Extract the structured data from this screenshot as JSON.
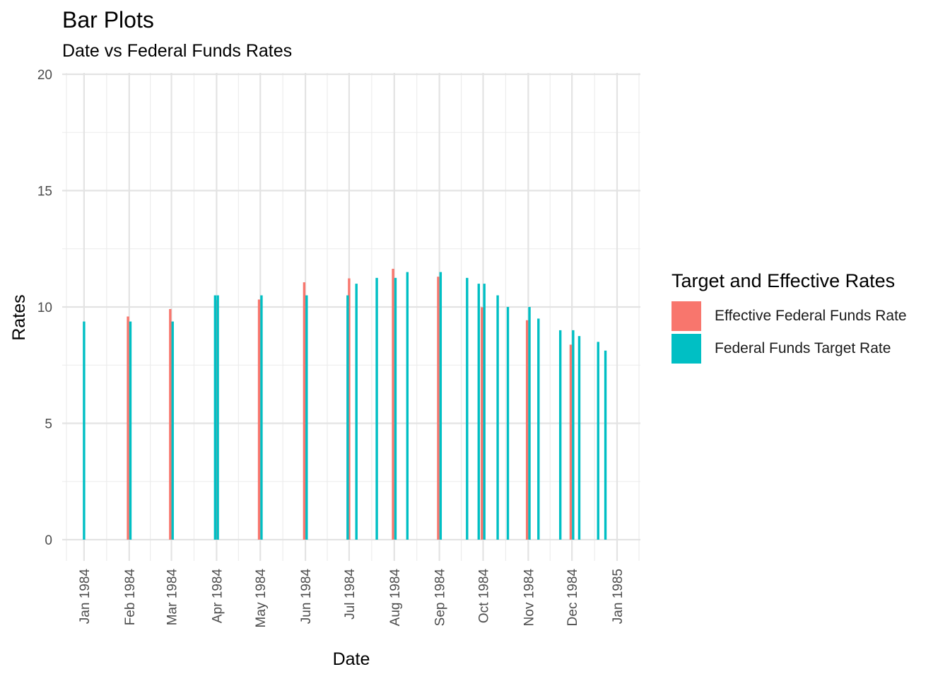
{
  "chart_data": {
    "type": "bar",
    "title": "Bar Plots",
    "subtitle": "Date vs Federal Funds Rates",
    "xlabel": "Date",
    "ylabel": "Rates",
    "ylim": [
      0,
      20
    ],
    "yticks": [
      0,
      5,
      10,
      15,
      20
    ],
    "xlim": [
      "1983-12-17",
      "1985-01-17"
    ],
    "xticks": [
      "1984-01-01",
      "1984-02-01",
      "1984-03-01",
      "1984-04-01",
      "1984-05-01",
      "1984-06-01",
      "1984-07-01",
      "1984-08-01",
      "1984-09-01",
      "1984-10-01",
      "1984-11-01",
      "1984-12-01",
      "1985-01-01"
    ],
    "xtick_labels": [
      "Jan 1984",
      "Feb 1984",
      "Mar 1984",
      "Apr 1984",
      "May 1984",
      "Jun 1984",
      "Jul 1984",
      "Aug 1984",
      "Sep 1984",
      "Oct 1984",
      "Nov 1984",
      "Dec 1984",
      "Jan 1985"
    ],
    "grid": true,
    "legend": {
      "title": "Target and Effective Rates",
      "position": "right"
    },
    "series": [
      {
        "name": "Effective Federal Funds Rate",
        "color": "#F8766D",
        "points": [
          {
            "x": "1984-02-01",
            "y": 9.59
          },
          {
            "x": "1984-03-01",
            "y": 9.91
          },
          {
            "x": "1984-04-01",
            "y": 10.29
          },
          {
            "x": "1984-05-01",
            "y": 10.32
          },
          {
            "x": "1984-06-01",
            "y": 11.06
          },
          {
            "x": "1984-07-01",
            "y": 11.23
          },
          {
            "x": "1984-08-01",
            "y": 11.64
          },
          {
            "x": "1984-09-01",
            "y": 11.3
          },
          {
            "x": "1984-10-01",
            "y": 9.99
          },
          {
            "x": "1984-11-01",
            "y": 9.43
          },
          {
            "x": "1984-12-01",
            "y": 8.38
          }
        ]
      },
      {
        "name": "Federal Funds Target Rate",
        "color": "#00BFC4",
        "points": [
          {
            "x": "1984-01-01",
            "y": 9.375
          },
          {
            "x": "1984-02-01",
            "y": 9.375
          },
          {
            "x": "1984-03-01",
            "y": 9.375
          },
          {
            "x": "1984-03-31",
            "y": 10.5
          },
          {
            "x": "1984-04-01",
            "y": 10.5
          },
          {
            "x": "1984-05-01",
            "y": 10.5
          },
          {
            "x": "1984-06-01",
            "y": 10.5
          },
          {
            "x": "1984-06-30",
            "y": 10.5
          },
          {
            "x": "1984-07-06",
            "y": 11.0
          },
          {
            "x": "1984-07-20",
            "y": 11.25
          },
          {
            "x": "1984-08-01",
            "y": 11.25
          },
          {
            "x": "1984-08-10",
            "y": 11.5
          },
          {
            "x": "1984-09-01",
            "y": 11.5
          },
          {
            "x": "1984-09-20",
            "y": 11.25
          },
          {
            "x": "1984-09-28",
            "y": 11.0
          },
          {
            "x": "1984-10-01",
            "y": 11.0
          },
          {
            "x": "1984-10-11",
            "y": 10.5
          },
          {
            "x": "1984-10-18",
            "y": 10.0
          },
          {
            "x": "1984-11-01",
            "y": 10.0
          },
          {
            "x": "1984-11-08",
            "y": 9.5
          },
          {
            "x": "1984-11-23",
            "y": 9.0
          },
          {
            "x": "1984-12-01",
            "y": 9.0
          },
          {
            "x": "1984-12-06",
            "y": 8.75
          },
          {
            "x": "1984-12-19",
            "y": 8.5
          },
          {
            "x": "1984-12-24",
            "y": 8.125
          }
        ]
      }
    ]
  }
}
